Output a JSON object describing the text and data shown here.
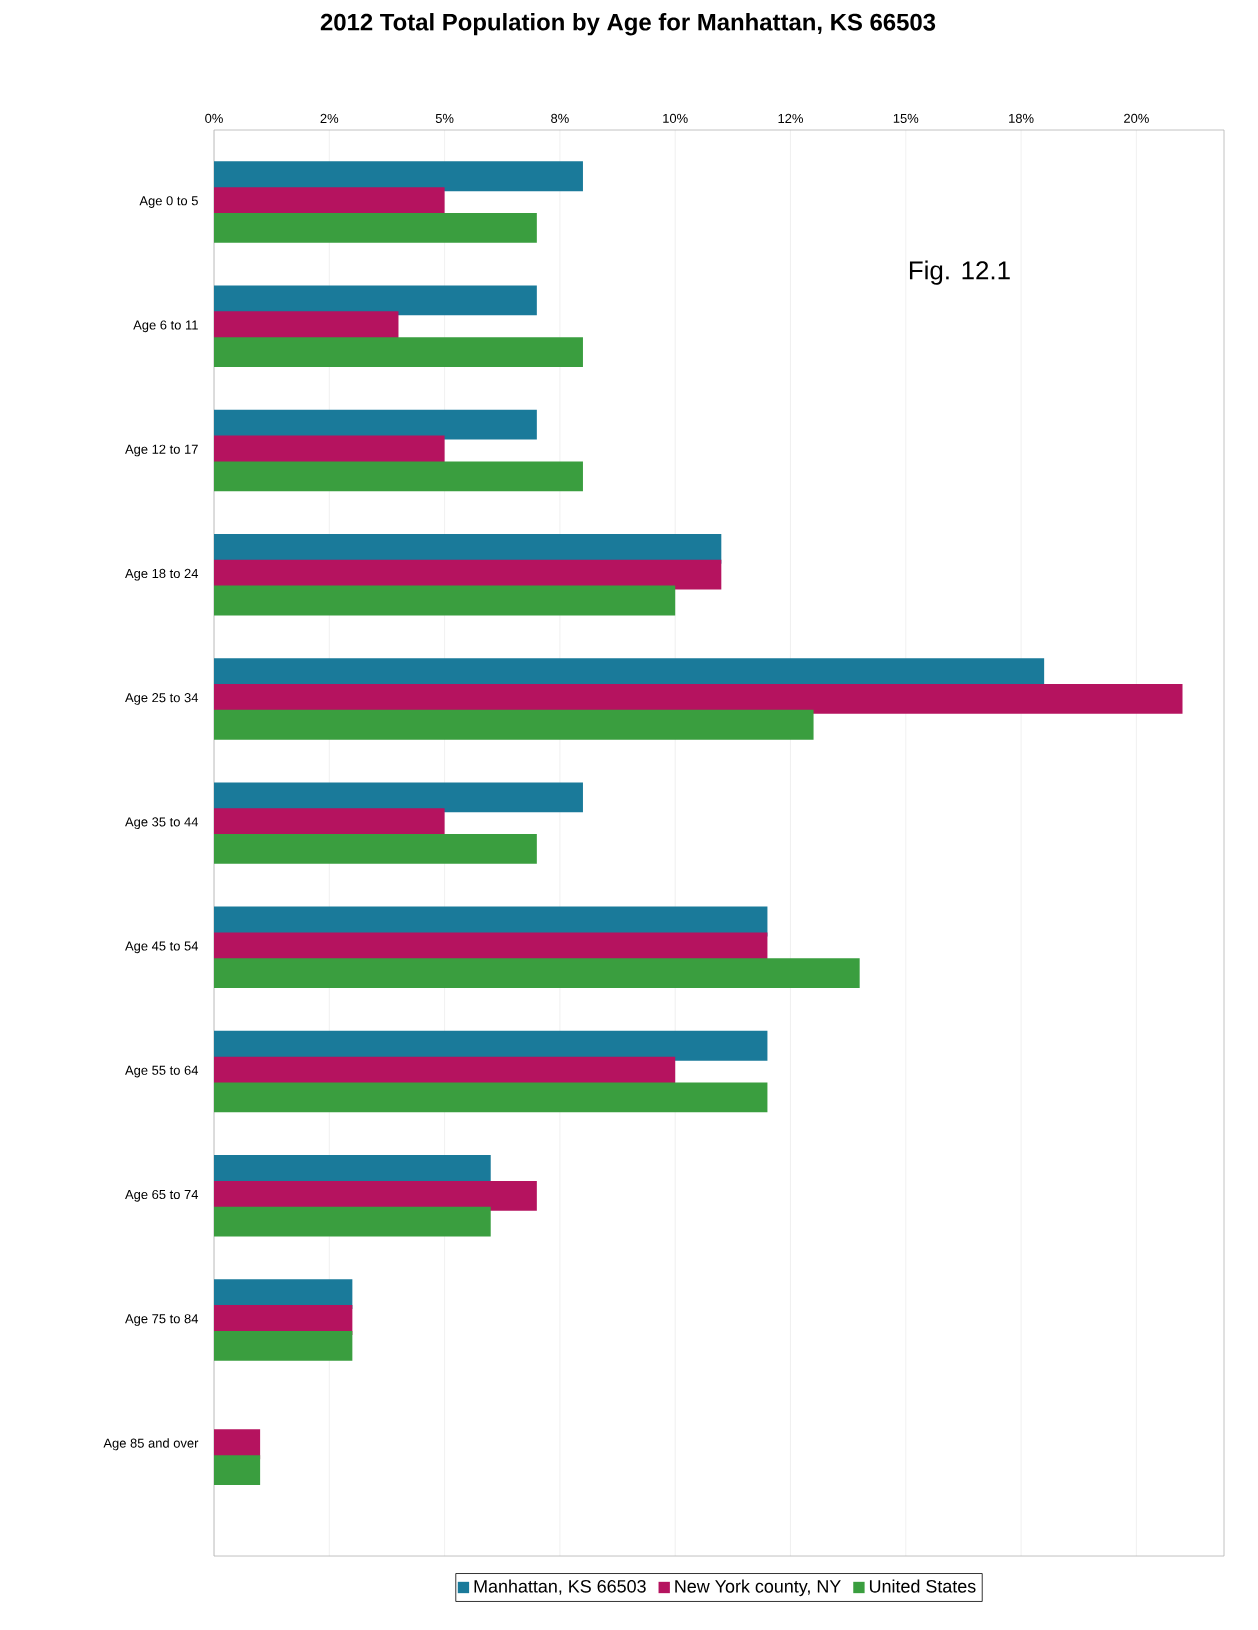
{
  "chart_data": {
    "type": "bar",
    "orientation": "horizontal",
    "title": "2012 Total Population by Age for Manhattan, KS 66503",
    "categories": [
      "Age 0 to 5",
      "Age 6 to 11",
      "Age 12 to 17",
      "Age 18 to 24",
      "Age 25 to 34",
      "Age 35 to 44",
      "Age 45 to 54",
      "Age 55 to 64",
      "Age 65 to 74",
      "Age 75 to 84",
      "Age 85 and over"
    ],
    "series": [
      {
        "name": "Manhattan, KS 66503",
        "color": "#1a7a9a",
        "values": [
          8,
          7,
          7,
          11,
          18,
          8,
          12,
          12,
          6,
          3,
          0
        ]
      },
      {
        "name": "New York county, NY",
        "color": "#b5135f",
        "values": [
          5,
          4,
          5,
          11,
          21,
          5,
          12,
          10,
          7,
          3,
          1
        ]
      },
      {
        "name": "United States",
        "color": "#3a9e3f",
        "values": [
          7,
          8,
          8,
          10,
          13,
          7,
          14,
          12,
          6,
          3,
          1
        ]
      }
    ],
    "xlim": [
      0,
      21.9
    ],
    "xticks": [
      {
        "value": 0,
        "label": "0%"
      },
      {
        "value": 2.5,
        "label": "2%"
      },
      {
        "value": 5,
        "label": "5%"
      },
      {
        "value": 7.5,
        "label": "8%"
      },
      {
        "value": 10,
        "label": "10%"
      },
      {
        "value": 12.5,
        "label": "12%"
      },
      {
        "value": 15,
        "label": "15%"
      },
      {
        "value": 17.5,
        "label": "18%"
      },
      {
        "value": 20,
        "label": "20%"
      }
    ],
    "grid": "x",
    "legend": "bottom",
    "annotations": [
      "Fig. 12.1"
    ]
  }
}
